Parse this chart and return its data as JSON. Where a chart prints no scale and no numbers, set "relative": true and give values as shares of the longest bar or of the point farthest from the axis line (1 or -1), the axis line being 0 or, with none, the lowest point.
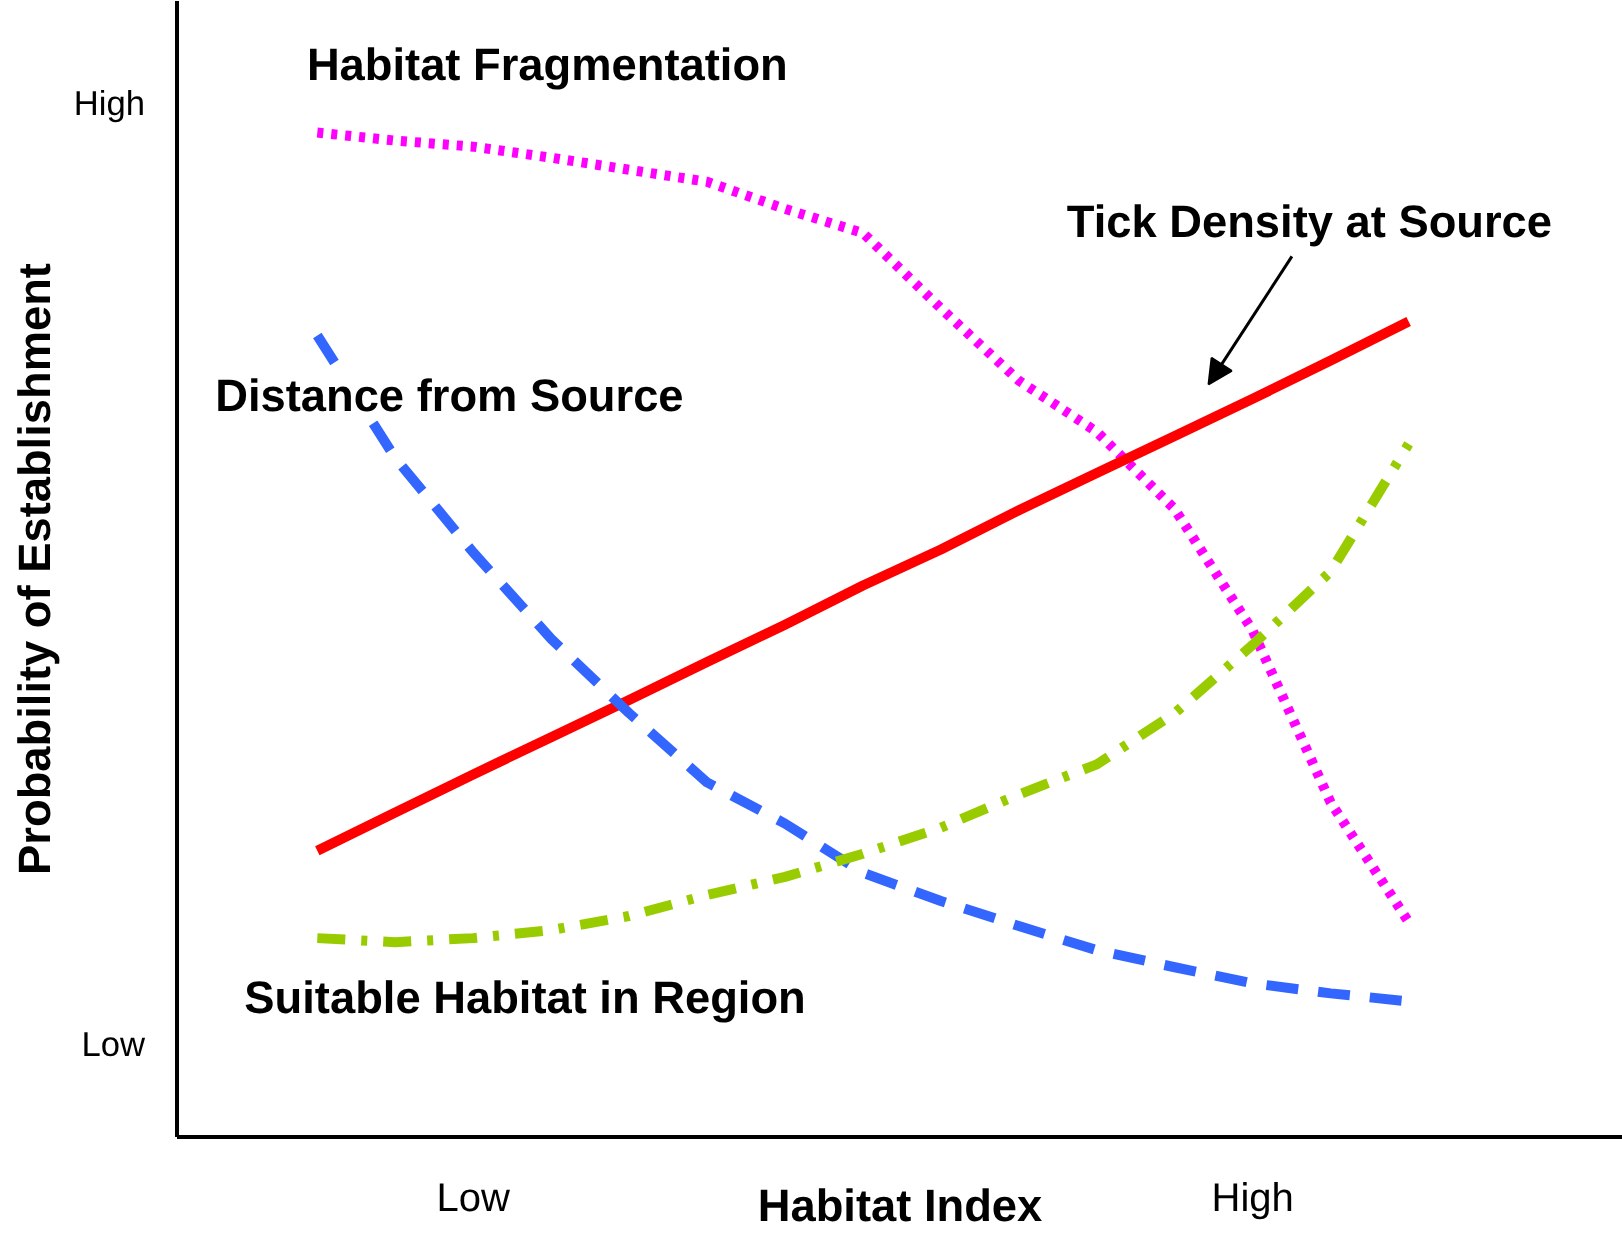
{
  "chart_data": {
    "type": "line",
    "relative": true,
    "xlabel": "Habitat Index",
    "ylabel": "Probability of Establishment",
    "categories": [
      null,
      null,
      "Low",
      null,
      null,
      null,
      null,
      null,
      null,
      null,
      null,
      null,
      "High",
      null,
      null
    ],
    "annotations": [
      "High",
      "Low"
    ],
    "grid": false,
    "legend": false,
    "marker": "none",
    "series": [
      {
        "name": "Habitat Fragmentation",
        "color": "#ff00ff",
        "line_style": "dotted",
        "values": [
          1.0,
          0.992,
          0.986,
          0.975,
          0.963,
          0.951,
          0.924,
          0.9,
          0.825,
          0.753,
          0.702,
          0.625,
          0.504,
          0.333,
          0.214
        ]
      },
      {
        "name": "Tick Density at Source",
        "color": "#ff0000",
        "line_style": "solid",
        "values": [
          0.285,
          0.323,
          0.361,
          0.398,
          0.435,
          0.473,
          0.51,
          0.549,
          0.585,
          0.624,
          0.661,
          0.698,
          0.735,
          0.773,
          0.812
        ]
      },
      {
        "name": "Distance from Source",
        "color": "#3366ff",
        "line_style": "dashed",
        "values": [
          0.798,
          0.676,
          0.582,
          0.496,
          0.422,
          0.353,
          0.312,
          0.263,
          0.235,
          0.21,
          0.186,
          0.169,
          0.153,
          0.143,
          0.135
        ]
      },
      {
        "name": "Suitable Habitat in Region",
        "color": "#99cc00",
        "line_style": "dashdot",
        "values": [
          0.198,
          0.194,
          0.198,
          0.206,
          0.22,
          0.241,
          0.259,
          0.282,
          0.308,
          0.341,
          0.371,
          0.422,
          0.49,
          0.563,
          0.69
        ]
      }
    ]
  }
}
